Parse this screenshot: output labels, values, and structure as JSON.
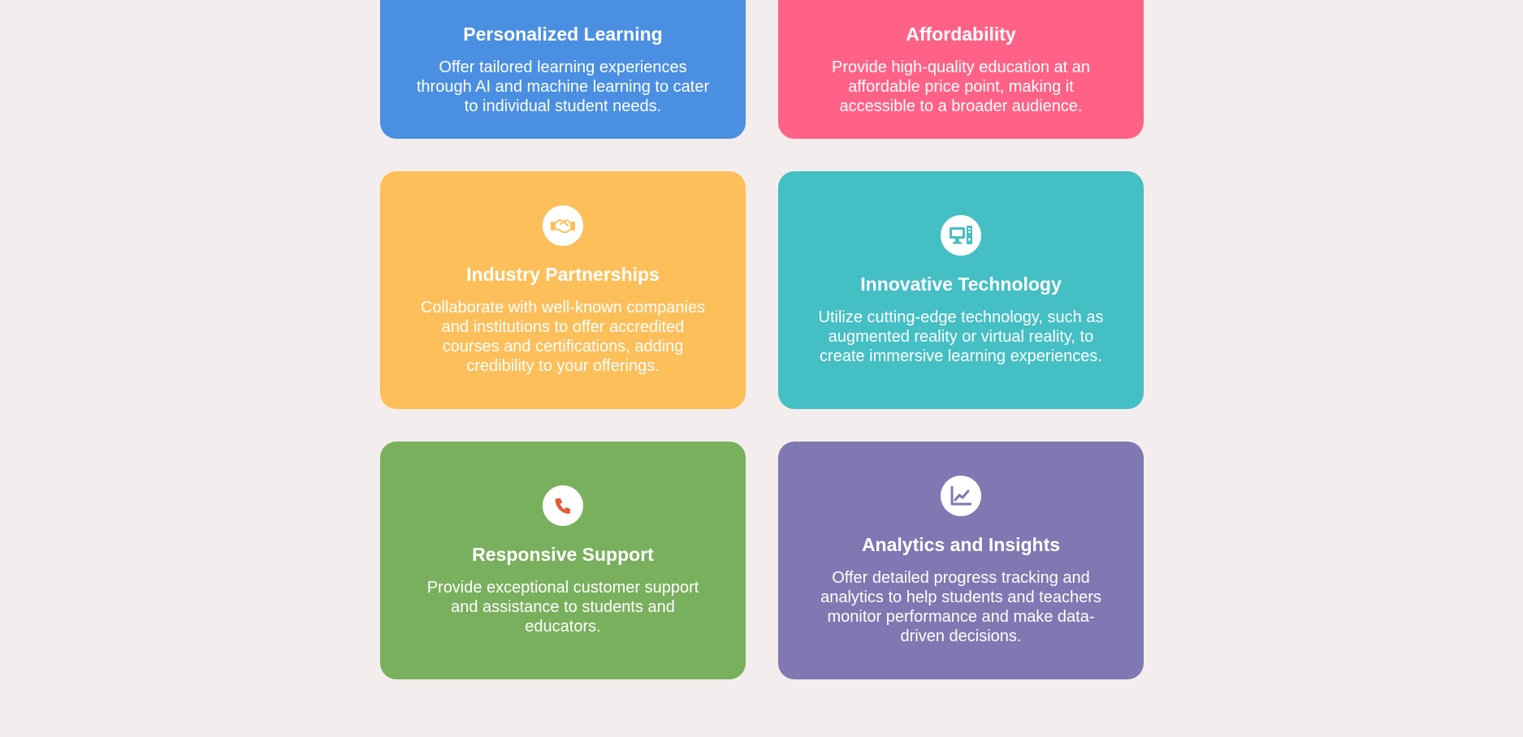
{
  "cards": [
    {
      "title": "Personalized Learning",
      "description": "Offer tailored learning experiences through AI and machine learning to cater to individual student needs.",
      "color": "#4a8fe2"
    },
    {
      "title": "Affordability",
      "description": "Provide high-quality education at an affordable price point, making it accessible to a broader audience.",
      "color": "#ff6286"
    },
    {
      "title": "Industry Partnerships",
      "description": "Collaborate with well-known companies and institutions to offer accredited courses and certifications, adding credibility to your offerings.",
      "icon": "handshake-icon",
      "color": "#fdbf5a"
    },
    {
      "title": "Innovative Technology",
      "description": "Utilize cutting-edge technology, such as augmented reality or virtual reality, to create immersive learning experiences.",
      "icon": "desktop-computer-icon",
      "color": "#44bfc4"
    },
    {
      "title": "Responsive Support",
      "description": "Provide exceptional customer support and assistance to students and educators.",
      "icon": "phone-icon",
      "color": "#79b05d"
    },
    {
      "title": "Analytics and Insights",
      "description": "Offer detailed progress tracking and analytics to help students and teachers monitor performance and make data-driven decisions.",
      "icon": "line-chart-icon",
      "color": "#7f78b2"
    }
  ],
  "background_color": "#f4eded"
}
